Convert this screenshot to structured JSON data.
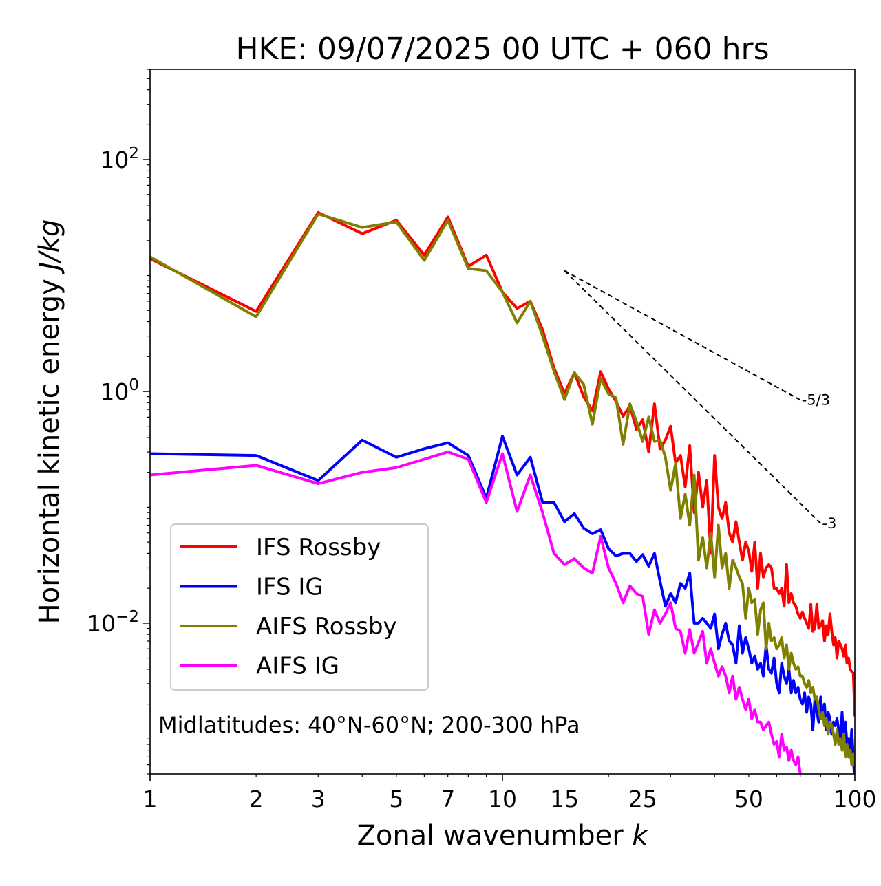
{
  "chart_data": {
    "type": "line",
    "title": "HKE: 09/07/2025 00 UTC + 060 hrs",
    "xlabel_text": "Zonal wavenumber ",
    "xlabel_var": "k",
    "ylabel_text": "Horizontal kinetic energy ",
    "ylabel_unit": "J/kg",
    "x_scale": "log",
    "y_scale": "log",
    "xlim": [
      1,
      100
    ],
    "ylim": [
      0.0005,
      600
    ],
    "x_ticks": [
      1,
      2,
      3,
      5,
      7,
      10,
      15,
      25,
      50,
      100
    ],
    "x_tick_labels": [
      "1",
      "2",
      "3",
      "5",
      "7",
      "10",
      "15",
      "25",
      "50",
      "100"
    ],
    "y_ticks": [
      {
        "value": 100,
        "base": "10",
        "exp": "2"
      },
      {
        "value": 1,
        "base": "10",
        "exp": "0"
      },
      {
        "value": 0.01,
        "base": "10",
        "exp": "−2"
      }
    ],
    "grid": false,
    "legend_position": "lower-left",
    "annotation": "Midlatitudes: 40°N-60°N; 200-300 hPa",
    "reference_slopes": [
      {
        "label": "-5/3",
        "exponent": -1.6667,
        "x_start": 15,
        "y_start": 11,
        "x_end": 70
      },
      {
        "label": "-3",
        "exponent": -3,
        "x_start": 15,
        "y_start": 11,
        "x_end": 80
      }
    ],
    "series": [
      {
        "name": "IFS Rossby",
        "color": "#ff0000",
        "x": [
          1,
          2,
          3,
          4,
          5,
          6,
          7,
          8,
          9,
          10,
          11,
          12,
          13,
          14,
          15,
          16,
          17,
          18,
          19,
          20,
          21,
          22,
          23,
          24,
          25,
          26,
          27,
          28,
          29,
          30,
          31,
          32,
          33,
          34,
          35,
          36,
          37,
          38,
          39,
          40,
          41,
          42,
          43,
          44,
          45,
          46,
          47,
          48,
          49,
          50,
          51,
          52,
          53,
          54,
          55,
          56,
          57,
          58,
          59,
          60,
          61,
          62,
          63,
          64,
          65,
          66,
          67,
          68,
          69,
          70,
          71,
          72,
          73,
          74,
          75,
          76,
          77,
          78,
          79,
          80,
          81,
          82,
          83,
          84,
          85,
          86,
          87,
          88,
          89,
          90,
          91,
          92,
          93,
          94,
          95,
          96,
          97,
          98,
          99,
          100
        ],
        "y": [
          14,
          4.9,
          35,
          23,
          30,
          15,
          32,
          12,
          15,
          7.2,
          5.2,
          6,
          3.4,
          1.6,
          0.96,
          1.45,
          0.9,
          0.68,
          1.48,
          1.05,
          0.82,
          0.61,
          0.75,
          0.47,
          0.57,
          0.3,
          0.78,
          0.32,
          0.38,
          0.5,
          0.24,
          0.28,
          0.15,
          0.34,
          0.09,
          0.2,
          0.1,
          0.17,
          0.04,
          0.28,
          0.1,
          0.08,
          0.11,
          0.06,
          0.05,
          0.075,
          0.05,
          0.035,
          0.05,
          0.042,
          0.028,
          0.05,
          0.02,
          0.04,
          0.025,
          0.03,
          0.032,
          0.03,
          0.02,
          0.02,
          0.018,
          0.02,
          0.014,
          0.032,
          0.015,
          0.018,
          0.015,
          0.014,
          0.012,
          0.011,
          0.0125,
          0.011,
          0.01,
          0.009,
          0.0145,
          0.0085,
          0.009,
          0.0145,
          0.009,
          0.0095,
          0.0105,
          0.007,
          0.0095,
          0.008,
          0.012,
          0.0085,
          0.0065,
          0.0075,
          0.005,
          0.007,
          0.0065,
          0.006,
          0.0052,
          0.0065,
          0.0045,
          0.005,
          0.004,
          0.0038,
          0.0037,
          0.0016
        ]
      },
      {
        "name": "IFS IG",
        "color": "#0000ff",
        "x": [
          1,
          2,
          3,
          4,
          5,
          6,
          7,
          8,
          9,
          10,
          11,
          12,
          13,
          14,
          15,
          16,
          17,
          18,
          19,
          20,
          21,
          22,
          23,
          24,
          25,
          26,
          27,
          28,
          29,
          30,
          31,
          32,
          33,
          34,
          35,
          36,
          37,
          38,
          39,
          40,
          41,
          42,
          43,
          44,
          45,
          46,
          47,
          48,
          49,
          50,
          51,
          52,
          53,
          54,
          55,
          56,
          57,
          58,
          59,
          60,
          61,
          62,
          63,
          64,
          65,
          66,
          67,
          68,
          69,
          70,
          71,
          72,
          73,
          74,
          75,
          76,
          77,
          78,
          79,
          80,
          81,
          82,
          83,
          84,
          85,
          86,
          87,
          88,
          89,
          90,
          91,
          92,
          93,
          94,
          95,
          96,
          97,
          98,
          99,
          100
        ],
        "y": [
          0.29,
          0.28,
          0.17,
          0.38,
          0.27,
          0.32,
          0.36,
          0.28,
          0.12,
          0.41,
          0.19,
          0.27,
          0.11,
          0.11,
          0.075,
          0.088,
          0.066,
          0.059,
          0.064,
          0.044,
          0.038,
          0.04,
          0.04,
          0.034,
          0.039,
          0.031,
          0.04,
          0.023,
          0.014,
          0.018,
          0.015,
          0.022,
          0.02,
          0.027,
          0.01,
          0.01,
          0.011,
          0.01,
          0.009,
          0.012,
          0.006,
          0.008,
          0.01,
          0.007,
          0.0065,
          0.0045,
          0.0095,
          0.0055,
          0.0075,
          0.006,
          0.0045,
          0.0052,
          0.004,
          0.0045,
          0.0035,
          0.0065,
          0.004,
          0.0037,
          0.005,
          0.003,
          0.0025,
          0.0045,
          0.0035,
          0.003,
          0.004,
          0.0025,
          0.0032,
          0.0025,
          0.0028,
          0.0022,
          0.002,
          0.0025,
          0.0017,
          0.0023,
          0.002,
          0.0012,
          0.0022,
          0.0017,
          0.0014,
          0.0023,
          0.0015,
          0.002,
          0.0012,
          0.0017,
          0.0015,
          0.0011,
          0.0014,
          0.0013,
          0.0015,
          0.0012,
          0.0009,
          0.0017,
          0.001,
          0.0014,
          0.0009,
          0.001,
          0.0008,
          0.0012,
          0.0007,
          0.0004
        ]
      },
      {
        "name": "AIFS Rossby",
        "color": "#808000",
        "x": [
          1,
          2,
          3,
          4,
          5,
          6,
          7,
          8,
          9,
          10,
          11,
          12,
          13,
          14,
          15,
          16,
          17,
          18,
          19,
          20,
          21,
          22,
          23,
          24,
          25,
          26,
          27,
          28,
          29,
          30,
          31,
          32,
          33,
          34,
          35,
          36,
          37,
          38,
          39,
          40,
          41,
          42,
          43,
          44,
          45,
          46,
          47,
          48,
          49,
          50,
          51,
          52,
          53,
          54,
          55,
          56,
          57,
          58,
          59,
          60,
          61,
          62,
          63,
          64,
          65,
          66,
          67,
          68,
          69,
          70,
          71,
          72,
          73,
          74,
          75,
          76,
          77,
          78,
          79,
          80,
          81,
          82,
          83,
          84,
          85,
          86,
          87,
          88,
          89,
          90,
          91,
          92,
          93,
          94,
          95,
          96,
          97,
          98,
          99,
          100
        ],
        "y": [
          14.5,
          4.4,
          34,
          26,
          29,
          13.5,
          30,
          11.5,
          11,
          7.2,
          3.9,
          6,
          3,
          1.5,
          0.85,
          1.45,
          1.15,
          0.52,
          1.3,
          0.95,
          0.88,
          0.35,
          0.78,
          0.55,
          0.37,
          0.6,
          0.37,
          0.38,
          0.27,
          0.14,
          0.24,
          0.08,
          0.13,
          0.07,
          0.19,
          0.035,
          0.055,
          0.03,
          0.06,
          0.025,
          0.07,
          0.03,
          0.04,
          0.02,
          0.035,
          0.03,
          0.025,
          0.022,
          0.011,
          0.02,
          0.015,
          0.016,
          0.008,
          0.013,
          0.015,
          0.006,
          0.01,
          0.007,
          0.0075,
          0.006,
          0.0065,
          0.0075,
          0.005,
          0.0065,
          0.004,
          0.0055,
          0.0045,
          0.004,
          0.0042,
          0.0035,
          0.0035,
          0.003,
          0.0028,
          0.0032,
          0.0025,
          0.0028,
          0.0022,
          0.0023,
          0.0018,
          0.0015,
          0.0017,
          0.0013,
          0.0015,
          0.0011,
          0.0014,
          0.0013,
          0.0011,
          0.0009,
          0.0012,
          0.0009,
          0.001,
          0.0008,
          0.0011,
          0.0007,
          0.0009,
          0.0007,
          0.0008,
          0.0006,
          0.00075,
          0.0006
        ]
      },
      {
        "name": "AIFS IG",
        "color": "#ff00ff",
        "x": [
          1,
          2,
          3,
          4,
          5,
          6,
          7,
          8,
          9,
          10,
          11,
          12,
          13,
          14,
          15,
          16,
          17,
          18,
          19,
          20,
          21,
          22,
          23,
          24,
          25,
          26,
          27,
          28,
          29,
          30,
          31,
          32,
          33,
          34,
          35,
          36,
          37,
          38,
          39,
          40,
          41,
          42,
          43,
          44,
          45,
          46,
          47,
          48,
          49,
          50,
          51,
          52,
          53,
          54,
          55,
          56,
          57,
          58,
          59,
          60,
          61,
          62,
          63,
          64,
          65,
          66,
          67,
          68,
          69,
          70
        ],
        "y": [
          0.19,
          0.23,
          0.16,
          0.2,
          0.22,
          0.26,
          0.3,
          0.26,
          0.11,
          0.29,
          0.092,
          0.19,
          0.09,
          0.04,
          0.032,
          0.036,
          0.03,
          0.027,
          0.056,
          0.03,
          0.022,
          0.015,
          0.021,
          0.018,
          0.017,
          0.008,
          0.013,
          0.01,
          0.012,
          0.015,
          0.009,
          0.0085,
          0.0055,
          0.0088,
          0.0055,
          0.0068,
          0.0085,
          0.0045,
          0.006,
          0.0045,
          0.0035,
          0.0042,
          0.0035,
          0.0025,
          0.0035,
          0.0022,
          0.0028,
          0.0022,
          0.0018,
          0.0022,
          0.0015,
          0.0018,
          0.0014,
          0.0014,
          0.0012,
          0.0013,
          0.0014,
          0.0011,
          0.0009,
          0.00095,
          0.0007,
          0.0011,
          0.0008,
          0.00085,
          0.00065,
          0.0008,
          0.00065,
          0.0006,
          0.0007,
          0.0005
        ]
      }
    ]
  }
}
